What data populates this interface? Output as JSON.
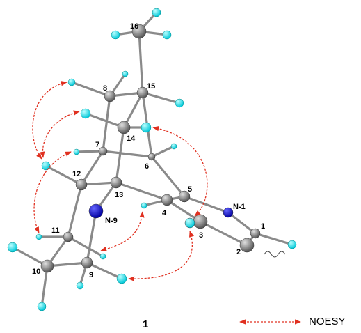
{
  "atom_labels": [
    "16",
    "15",
    "8",
    "14",
    "7",
    "6",
    "12",
    "13",
    "5",
    "N-1",
    "4",
    "N-9",
    "3",
    "1",
    "11",
    "2",
    "10",
    "9"
  ],
  "compound_label": "1",
  "legend": {
    "label": "NOESY"
  }
}
